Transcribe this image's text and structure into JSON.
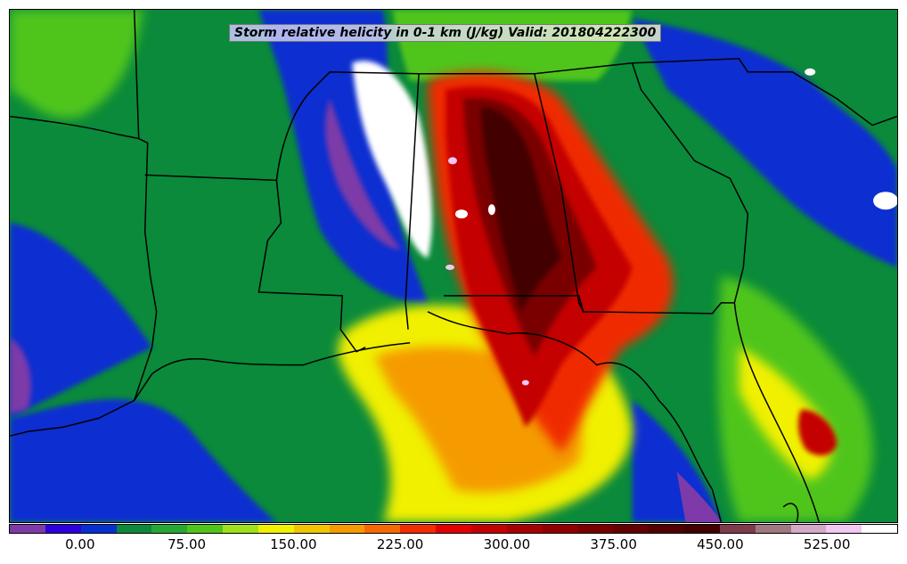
{
  "title": "Storm relative helicity in 0-1 km (J/kg) Valid: 201804222300",
  "colorbar": {
    "colors": [
      "#7d3aa8",
      "#2d00e0",
      "#0830d0",
      "#0a8a3a",
      "#27a834",
      "#4fc51a",
      "#9ee31a",
      "#f0f000",
      "#f2c300",
      "#f59b00",
      "#f56a00",
      "#f02c00",
      "#e00000",
      "#c40000",
      "#a80000",
      "#900000",
      "#7a0000",
      "#640000",
      "#520000",
      "#420000",
      "#7e3c4a",
      "#a07880",
      "#d6a8c8",
      "#f0c8f0",
      "#ffffff"
    ],
    "tick_labels": [
      "0.00",
      "75.00",
      "150.00",
      "225.00",
      "300.00",
      "375.00",
      "450.00",
      "525.00"
    ],
    "tick_values": [
      0,
      75,
      150,
      225,
      300,
      375,
      450,
      525
    ],
    "range": [
      -50,
      575
    ]
  }
}
